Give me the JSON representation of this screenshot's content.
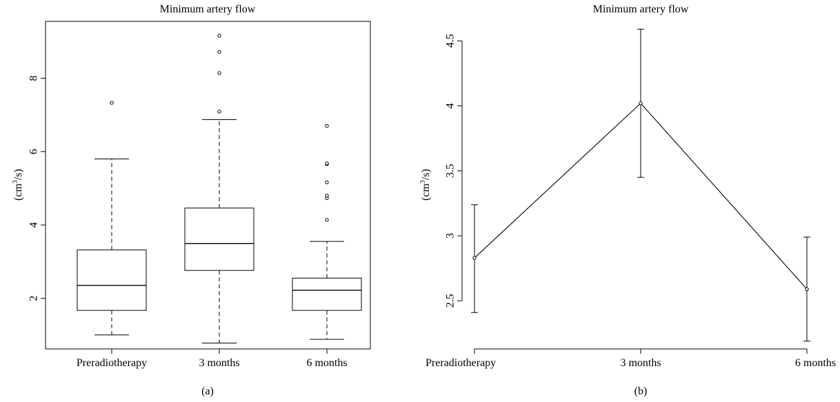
{
  "chart_data": [
    {
      "type": "box",
      "title": "Minimum artery flow",
      "caption": "(a)",
      "ylabel": {
        "pre": "(cm",
        "sup": "3",
        "post": "/s)"
      },
      "categories": [
        "Preradiotherapy",
        "3 months",
        "6 months"
      ],
      "ylim": [
        0.62,
        9.55
      ],
      "yticks": [
        2,
        4,
        6,
        8
      ],
      "grid": false,
      "boxes": [
        {
          "min": 1.0,
          "q1": 1.67,
          "median": 2.35,
          "q3": 3.32,
          "max": 5.8,
          "outliers": [
            7.33
          ]
        },
        {
          "min": 0.78,
          "q1": 2.76,
          "median": 3.49,
          "q3": 4.46,
          "max": 6.87,
          "outliers": [
            7.09,
            8.14,
            8.72,
            9.16
          ]
        },
        {
          "min": 0.88,
          "q1": 1.67,
          "median": 2.22,
          "q3": 2.55,
          "max": 3.55,
          "outliers": [
            4.14,
            4.73,
            4.8,
            5.16,
            5.66,
            5.68,
            6.7
          ]
        }
      ]
    },
    {
      "type": "line",
      "title": "Minimum artery flow",
      "caption": "(b)",
      "ylabel": {
        "pre": "(cm",
        "sup": "3",
        "post": "/s)"
      },
      "categories": [
        "Preradiotherapy",
        "3 months",
        "6 months"
      ],
      "ylim": [
        2.13,
        4.65
      ],
      "yticks": [
        2.5,
        3,
        3.5,
        4,
        4.5
      ],
      "ytick_labels": [
        "2.5",
        "3",
        "3.5",
        "4",
        "4.5"
      ],
      "grid": false,
      "series": [
        {
          "values": [
            2.83,
            4.02,
            2.59
          ],
          "lower": [
            2.41,
            3.45,
            2.19
          ],
          "upper": [
            3.24,
            4.59,
            2.99
          ]
        }
      ]
    }
  ]
}
